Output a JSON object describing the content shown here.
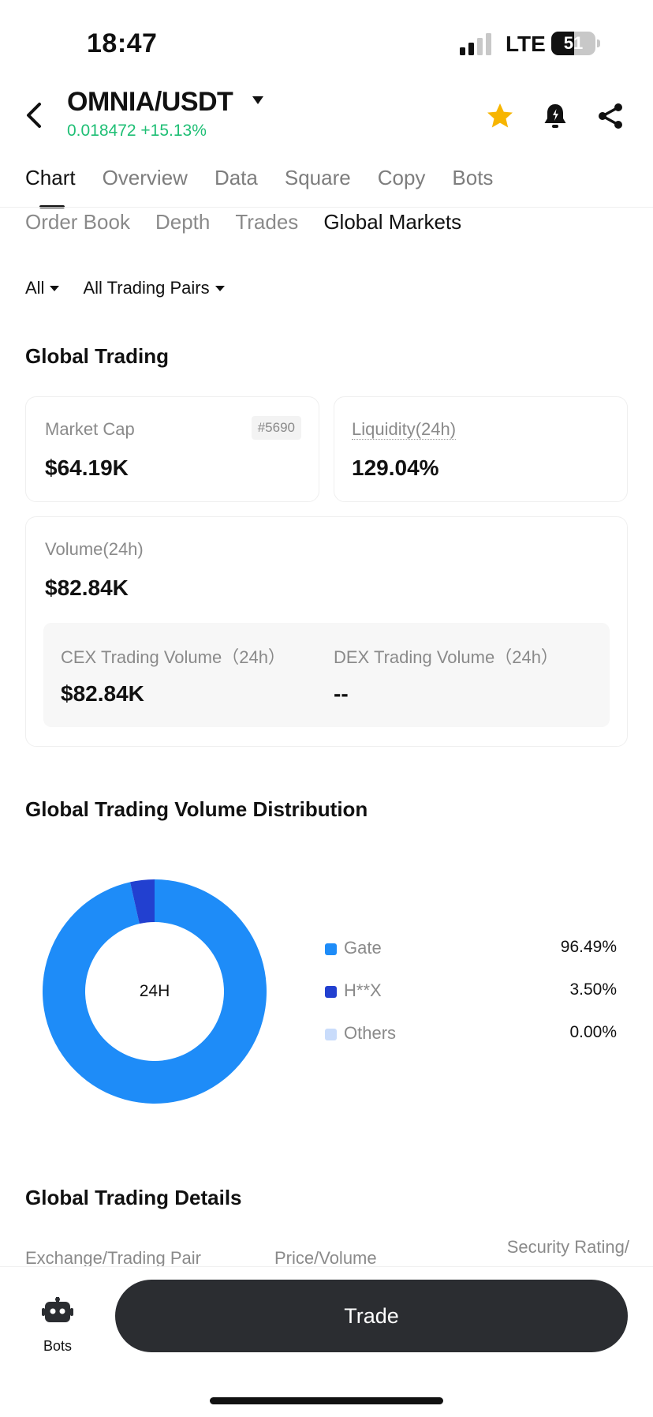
{
  "status": {
    "time": "18:47",
    "network": "LTE",
    "battery": "51",
    "battery_level": 0.51
  },
  "header": {
    "pair": "OMNIA/USDT",
    "price_change": "0.018472 +15.13%"
  },
  "tabs": [
    {
      "label": "Chart"
    },
    {
      "label": "Overview"
    },
    {
      "label": "Data"
    },
    {
      "label": "Square"
    },
    {
      "label": "Copy"
    },
    {
      "label": "Bots"
    }
  ],
  "subtabs": [
    {
      "label": "Order Book"
    },
    {
      "label": "Depth"
    },
    {
      "label": "Trades"
    },
    {
      "label": "Global Markets"
    }
  ],
  "filters": {
    "scope": "All",
    "pairs": "All Trading Pairs"
  },
  "global_trading": {
    "title": "Global Trading",
    "market_cap_label": "Market Cap",
    "market_cap_rank": "#5690",
    "market_cap_value": "$64.19K",
    "liquidity_label": "Liquidity(24h)",
    "liquidity_value": "129.04%",
    "volume_label": "Volume(24h)",
    "volume_value": "$82.84K",
    "cex_label": "CEX Trading Volume（24h）",
    "cex_value": "$82.84K",
    "dex_label": "DEX Trading Volume（24h）",
    "dex_value": "--"
  },
  "distribution": {
    "title": "Global Trading Volume Distribution",
    "center_label": "24H"
  },
  "chart_data": {
    "type": "pie",
    "categories": [
      "Gate",
      "H**X",
      "Others"
    ],
    "values": [
      96.49,
      3.5,
      0.0
    ],
    "labels": [
      "96.49%",
      "3.50%",
      "0.00%"
    ],
    "colors": [
      "#1e8cf8",
      "#2240d0",
      "#c9dcfb"
    ],
    "donut": true,
    "center_text": "24H",
    "legend_position": "right"
  },
  "details": {
    "title": "Global Trading Details",
    "col_exchange": "Exchange/Trading Pair",
    "col_price": "Price/Volume",
    "col_rating": "Security Rating/"
  },
  "bottom": {
    "bots_label": "Bots",
    "trade_label": "Trade"
  }
}
